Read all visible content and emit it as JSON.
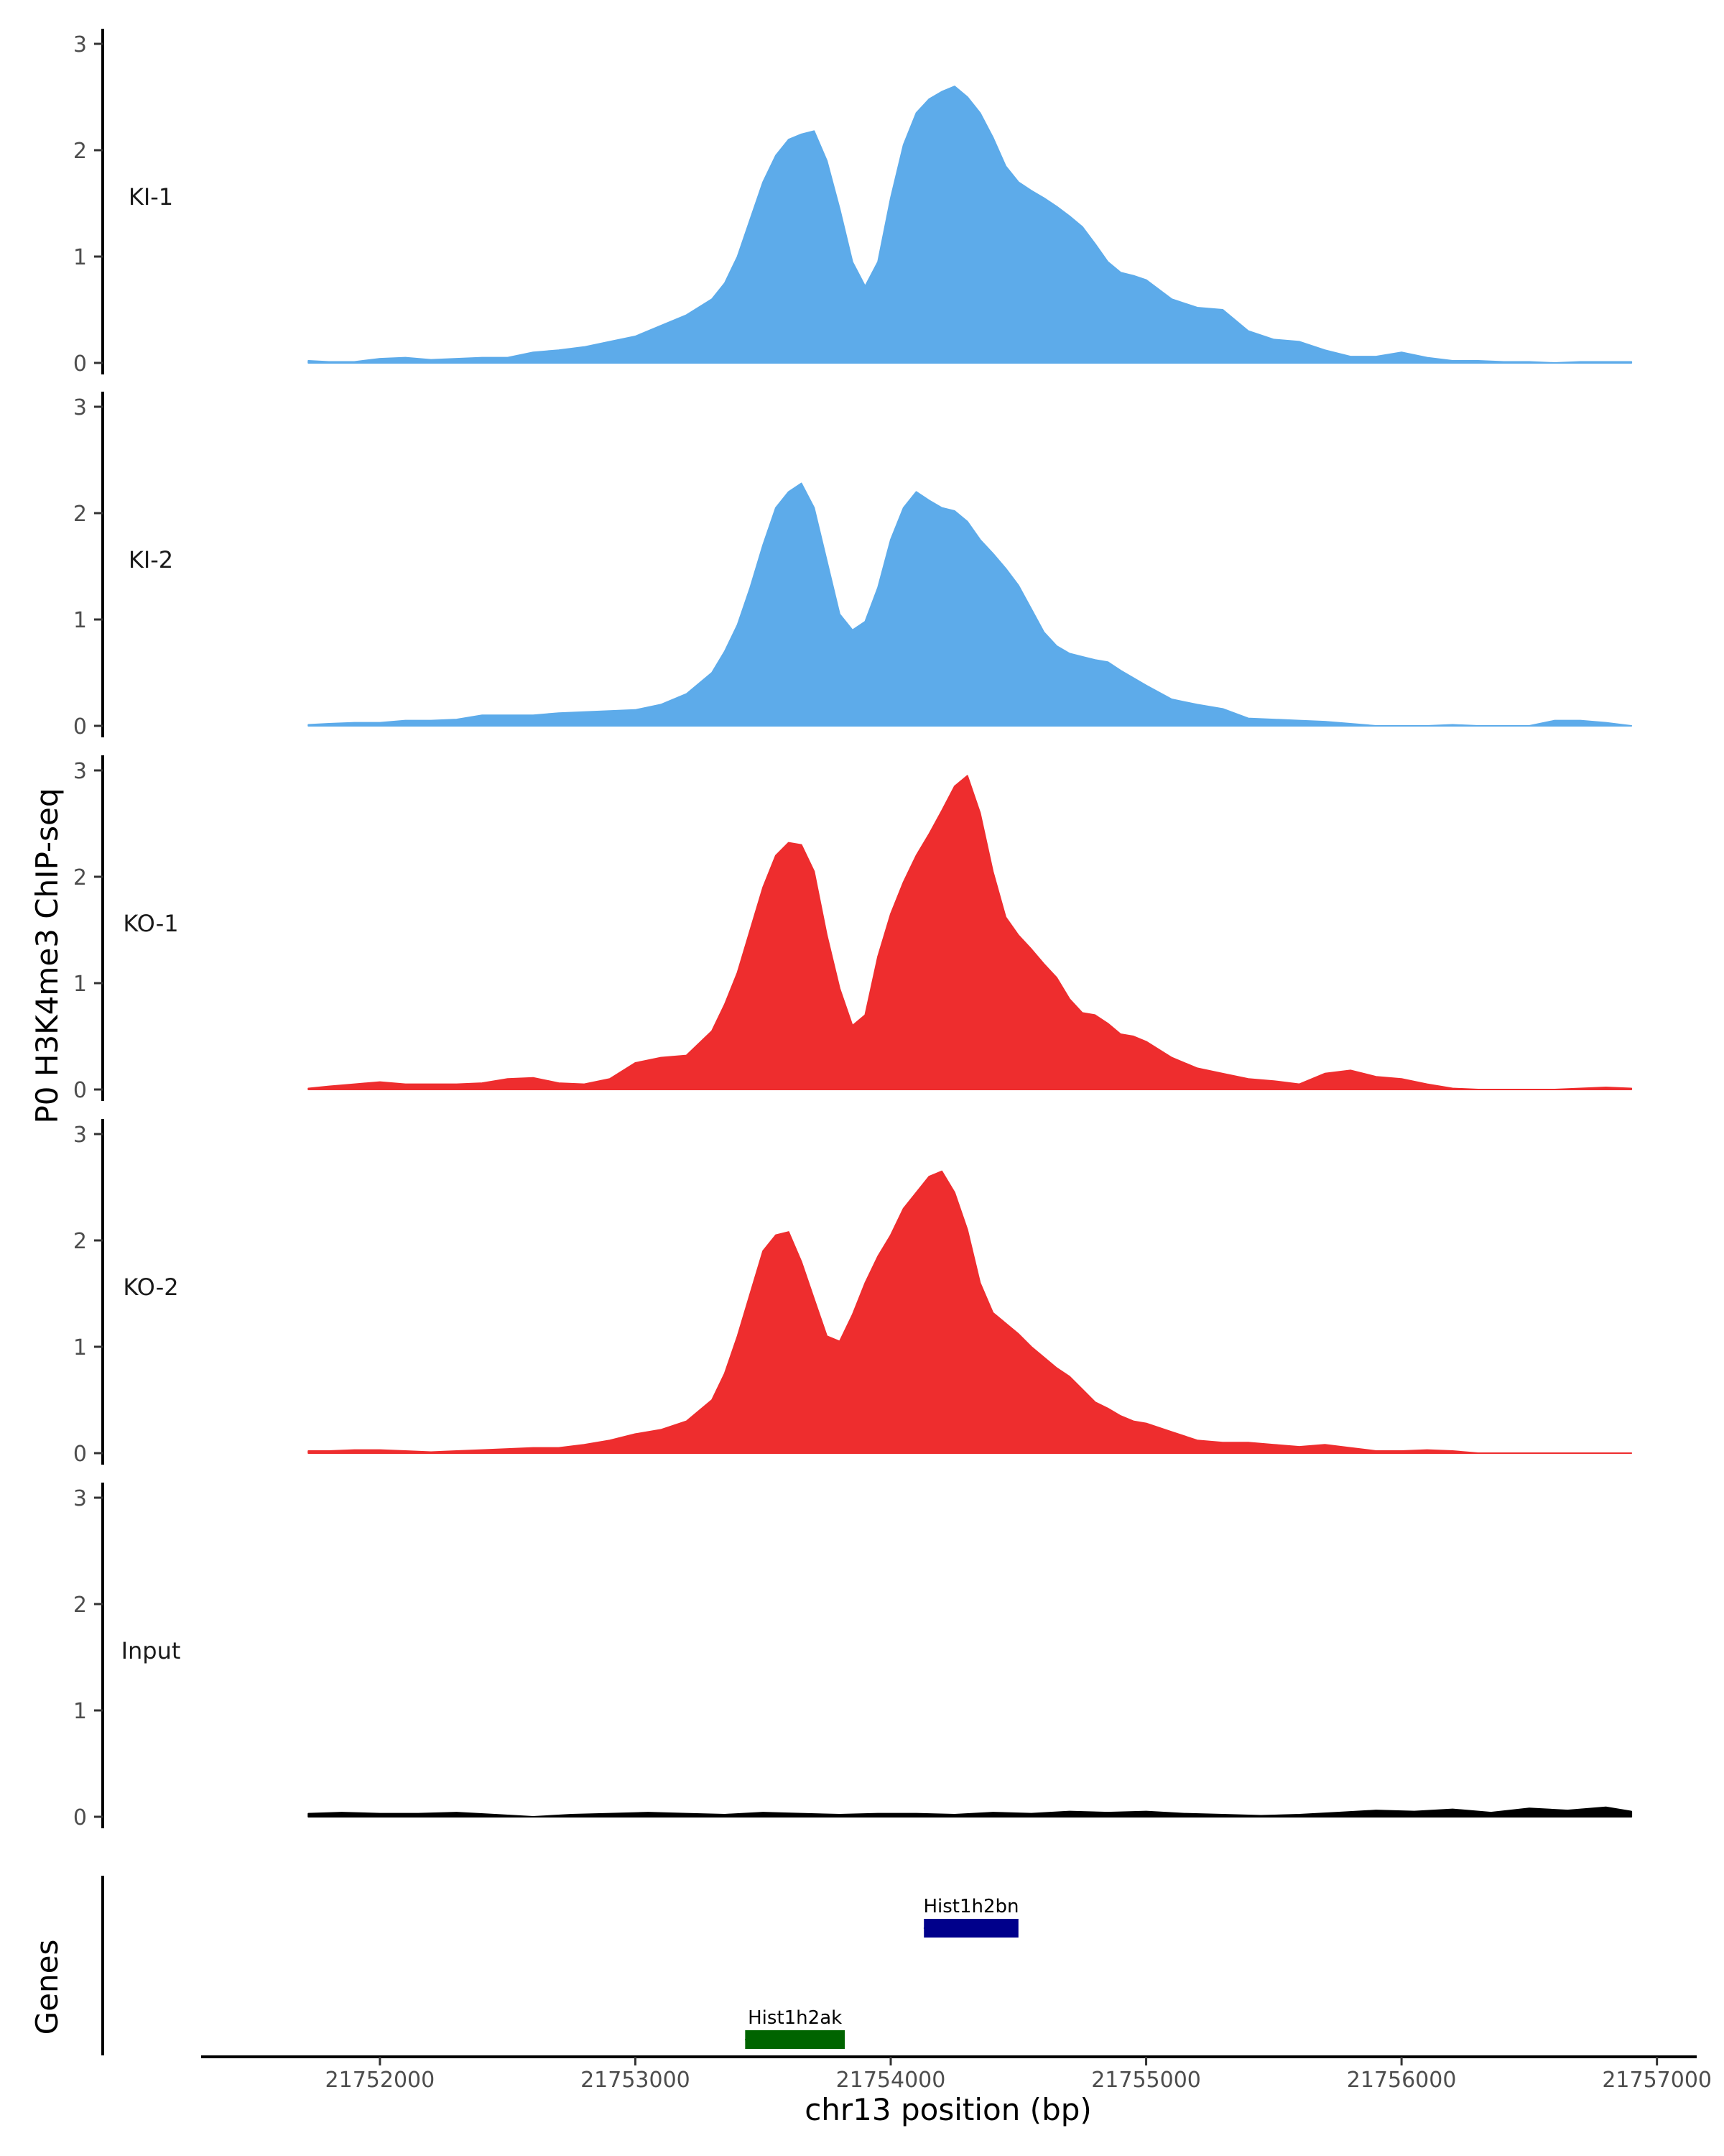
{
  "chart_data": {
    "type": "area",
    "title": "",
    "xlabel": "chr13 position (bp)",
    "ylabel": "P0 H3K4me3 ChIP-seq",
    "genes_label": "Genes",
    "xlim": [
      21751300,
      21757150
    ],
    "ylim": [
      0,
      3
    ],
    "x_ticks": [
      21752000,
      21753000,
      21754000,
      21755000,
      21756000,
      21757000
    ],
    "x_tick_labels": [
      "21752000",
      "21753000",
      "21754000",
      "21755000",
      "21756000",
      "21757000"
    ],
    "y_ticks": [
      0,
      1,
      2,
      3
    ],
    "y_tick_labels": [
      "0",
      "1",
      "2",
      "3"
    ],
    "series": [
      {
        "name": "KI-1",
        "color": "#5dabea",
        "x": [
          21751720,
          21751800,
          21751900,
          21752000,
          21752100,
          21752200,
          21752300,
          21752400,
          21752500,
          21752600,
          21752700,
          21752800,
          21752900,
          21753000,
          21753100,
          21753200,
          21753300,
          21753350,
          21753400,
          21753450,
          21753500,
          21753550,
          21753600,
          21753650,
          21753700,
          21753750,
          21753800,
          21753850,
          21753900,
          21753950,
          21754000,
          21754050,
          21754100,
          21754150,
          21754200,
          21754250,
          21754300,
          21754350,
          21754400,
          21754450,
          21754500,
          21754550,
          21754600,
          21754650,
          21754700,
          21754750,
          21754800,
          21754850,
          21754900,
          21754950,
          21755000,
          21755100,
          21755200,
          21755300,
          21755400,
          21755500,
          21755600,
          21755700,
          21755800,
          21755900,
          21756000,
          21756100,
          21756200,
          21756300,
          21756400,
          21756500,
          21756600,
          21756700,
          21756800,
          21756900
        ],
        "values": [
          0.02,
          0.01,
          0.01,
          0.04,
          0.05,
          0.03,
          0.04,
          0.05,
          0.05,
          0.1,
          0.12,
          0.15,
          0.2,
          0.25,
          0.35,
          0.45,
          0.6,
          0.75,
          1.0,
          1.35,
          1.7,
          1.95,
          2.1,
          2.15,
          2.18,
          1.9,
          1.45,
          0.95,
          0.72,
          0.95,
          1.55,
          2.05,
          2.35,
          2.48,
          2.55,
          2.6,
          2.5,
          2.35,
          2.12,
          1.85,
          1.7,
          1.62,
          1.55,
          1.47,
          1.38,
          1.28,
          1.12,
          0.95,
          0.85,
          0.82,
          0.78,
          0.6,
          0.52,
          0.5,
          0.3,
          0.22,
          0.2,
          0.12,
          0.06,
          0.06,
          0.1,
          0.05,
          0.02,
          0.02,
          0.01,
          0.01,
          0.0,
          0.01,
          0.01,
          0.01
        ]
      },
      {
        "name": "KI-2",
        "color": "#5dabea",
        "x": [
          21751720,
          21751800,
          21751900,
          21752000,
          21752100,
          21752200,
          21752300,
          21752400,
          21752500,
          21752600,
          21752700,
          21752800,
          21752900,
          21753000,
          21753100,
          21753200,
          21753300,
          21753350,
          21753400,
          21753450,
          21753500,
          21753550,
          21753600,
          21753650,
          21753700,
          21753750,
          21753800,
          21753850,
          21753900,
          21753950,
          21754000,
          21754050,
          21754100,
          21754150,
          21754200,
          21754250,
          21754300,
          21754350,
          21754400,
          21754450,
          21754500,
          21754550,
          21754600,
          21754650,
          21754700,
          21754750,
          21754800,
          21754850,
          21754900,
          21754950,
          21755000,
          21755100,
          21755200,
          21755300,
          21755400,
          21755500,
          21755600,
          21755700,
          21755800,
          21755900,
          21756000,
          21756100,
          21756200,
          21756300,
          21756400,
          21756500,
          21756600,
          21756700,
          21756800,
          21756900
        ],
        "values": [
          0.01,
          0.02,
          0.03,
          0.03,
          0.05,
          0.05,
          0.06,
          0.1,
          0.1,
          0.1,
          0.12,
          0.13,
          0.14,
          0.15,
          0.2,
          0.3,
          0.5,
          0.7,
          0.95,
          1.3,
          1.7,
          2.05,
          2.2,
          2.28,
          2.05,
          1.55,
          1.05,
          0.9,
          0.98,
          1.3,
          1.75,
          2.05,
          2.2,
          2.12,
          2.05,
          2.02,
          1.92,
          1.75,
          1.62,
          1.48,
          1.32,
          1.1,
          0.88,
          0.75,
          0.68,
          0.65,
          0.62,
          0.6,
          0.52,
          0.45,
          0.38,
          0.25,
          0.2,
          0.16,
          0.07,
          0.06,
          0.05,
          0.04,
          0.02,
          0.0,
          0.0,
          0.0,
          0.01,
          0.0,
          0.0,
          0.0,
          0.05,
          0.05,
          0.03,
          0.0
        ]
      },
      {
        "name": "KO-1",
        "color": "#ee2d2e",
        "x": [
          21751720,
          21751800,
          21751900,
          21752000,
          21752100,
          21752200,
          21752300,
          21752400,
          21752500,
          21752600,
          21752700,
          21752800,
          21752900,
          21753000,
          21753100,
          21753200,
          21753300,
          21753350,
          21753400,
          21753450,
          21753500,
          21753550,
          21753600,
          21753650,
          21753700,
          21753750,
          21753800,
          21753850,
          21753900,
          21753950,
          21754000,
          21754050,
          21754100,
          21754150,
          21754200,
          21754250,
          21754300,
          21754350,
          21754400,
          21754450,
          21754500,
          21754550,
          21754600,
          21754650,
          21754700,
          21754750,
          21754800,
          21754850,
          21754900,
          21754950,
          21755000,
          21755100,
          21755200,
          21755300,
          21755400,
          21755500,
          21755600,
          21755700,
          21755800,
          21755900,
          21756000,
          21756100,
          21756200,
          21756300,
          21756400,
          21756500,
          21756600,
          21756700,
          21756800,
          21756900
        ],
        "values": [
          0.01,
          0.03,
          0.05,
          0.07,
          0.05,
          0.05,
          0.05,
          0.06,
          0.1,
          0.11,
          0.06,
          0.05,
          0.1,
          0.25,
          0.3,
          0.32,
          0.55,
          0.8,
          1.1,
          1.5,
          1.9,
          2.2,
          2.32,
          2.3,
          2.05,
          1.45,
          0.95,
          0.6,
          0.7,
          1.25,
          1.65,
          1.95,
          2.2,
          2.4,
          2.62,
          2.85,
          2.95,
          2.6,
          2.05,
          1.62,
          1.45,
          1.32,
          1.18,
          1.05,
          0.85,
          0.72,
          0.7,
          0.62,
          0.52,
          0.5,
          0.45,
          0.3,
          0.2,
          0.15,
          0.1,
          0.08,
          0.05,
          0.15,
          0.18,
          0.12,
          0.1,
          0.05,
          0.01,
          0.0,
          0.0,
          0.0,
          0.0,
          0.01,
          0.02,
          0.01
        ]
      },
      {
        "name": "KO-2",
        "color": "#ee2d2e",
        "x": [
          21751720,
          21751800,
          21751900,
          21752000,
          21752100,
          21752200,
          21752300,
          21752400,
          21752500,
          21752600,
          21752700,
          21752800,
          21752900,
          21753000,
          21753100,
          21753200,
          21753300,
          21753350,
          21753400,
          21753450,
          21753500,
          21753550,
          21753600,
          21753650,
          21753700,
          21753750,
          21753800,
          21753850,
          21753900,
          21753950,
          21754000,
          21754050,
          21754100,
          21754150,
          21754200,
          21754250,
          21754300,
          21754350,
          21754400,
          21754450,
          21754500,
          21754550,
          21754600,
          21754650,
          21754700,
          21754750,
          21754800,
          21754850,
          21754900,
          21754950,
          21755000,
          21755100,
          21755200,
          21755300,
          21755400,
          21755500,
          21755600,
          21755700,
          21755800,
          21755900,
          21756000,
          21756100,
          21756200,
          21756300,
          21756400,
          21756500,
          21756600,
          21756700,
          21756800,
          21756900
        ],
        "values": [
          0.02,
          0.02,
          0.03,
          0.03,
          0.02,
          0.01,
          0.02,
          0.03,
          0.04,
          0.05,
          0.05,
          0.08,
          0.12,
          0.18,
          0.22,
          0.3,
          0.5,
          0.75,
          1.1,
          1.5,
          1.9,
          2.05,
          2.08,
          1.8,
          1.45,
          1.1,
          1.05,
          1.3,
          1.6,
          1.85,
          2.05,
          2.3,
          2.45,
          2.6,
          2.65,
          2.45,
          2.1,
          1.6,
          1.32,
          1.22,
          1.12,
          1.0,
          0.9,
          0.8,
          0.72,
          0.6,
          0.48,
          0.42,
          0.35,
          0.3,
          0.28,
          0.2,
          0.12,
          0.1,
          0.1,
          0.08,
          0.06,
          0.08,
          0.05,
          0.02,
          0.02,
          0.03,
          0.02,
          0.0,
          0.0,
          0.0,
          0.0,
          0.0,
          0.0,
          0.0
        ]
      },
      {
        "name": "Input",
        "color": "#000000",
        "x": [
          21751720,
          21751850,
          21752000,
          21752150,
          21752300,
          21752450,
          21752600,
          21752750,
          21752900,
          21753050,
          21753200,
          21753350,
          21753500,
          21753650,
          21753800,
          21753950,
          21754100,
          21754250,
          21754400,
          21754550,
          21754700,
          21754850,
          21755000,
          21755150,
          21755300,
          21755450,
          21755600,
          21755750,
          21755900,
          21756050,
          21756200,
          21756350,
          21756500,
          21756650,
          21756800,
          21756900
        ],
        "values": [
          0.03,
          0.04,
          0.03,
          0.03,
          0.04,
          0.02,
          0.0,
          0.02,
          0.03,
          0.04,
          0.03,
          0.02,
          0.04,
          0.03,
          0.02,
          0.03,
          0.03,
          0.02,
          0.04,
          0.03,
          0.05,
          0.04,
          0.05,
          0.03,
          0.02,
          0.01,
          0.02,
          0.04,
          0.06,
          0.05,
          0.07,
          0.04,
          0.08,
          0.06,
          0.09,
          0.05
        ]
      }
    ],
    "genes": [
      {
        "name": "Hist1h2bn",
        "start": 21754130,
        "end": 21754500,
        "strand": "-",
        "color": "#00008b",
        "row": 0
      },
      {
        "name": "Hist1h2ak",
        "start": 21753430,
        "end": 21753820,
        "strand": "-",
        "color": "#006400",
        "row": 1
      }
    ]
  }
}
